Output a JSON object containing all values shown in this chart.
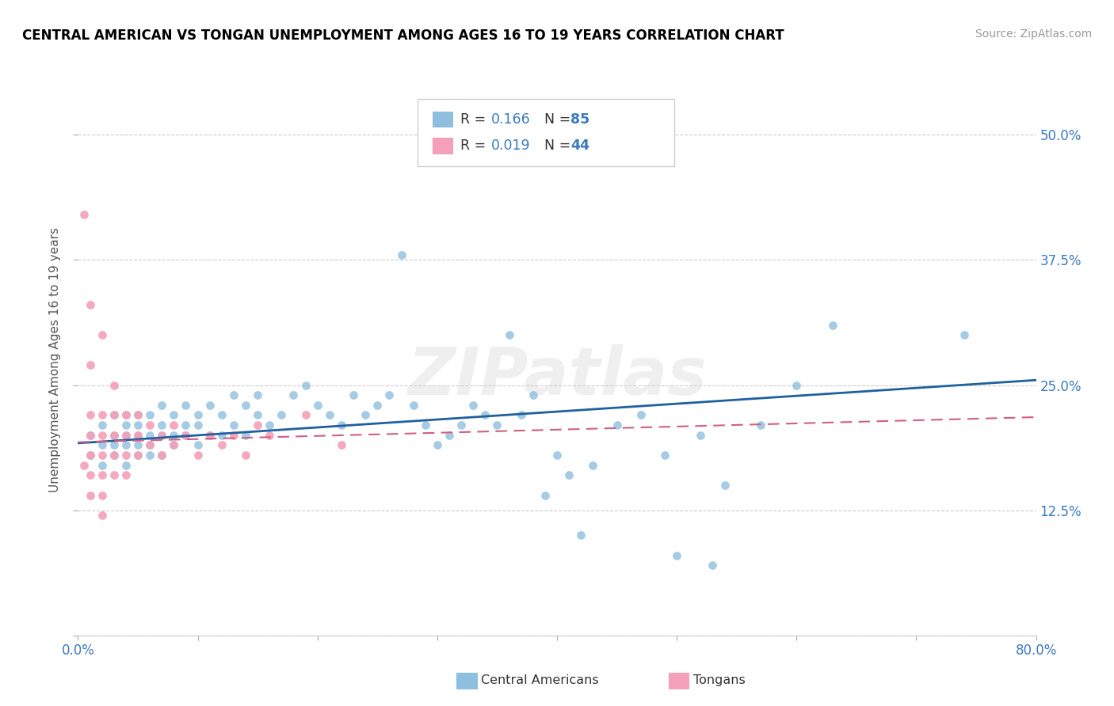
{
  "title": "CENTRAL AMERICAN VS TONGAN UNEMPLOYMENT AMONG AGES 16 TO 19 YEARS CORRELATION CHART",
  "source": "Source: ZipAtlas.com",
  "ylabel": "Unemployment Among Ages 16 to 19 years",
  "xlim": [
    0.0,
    0.8
  ],
  "ylim": [
    0.0,
    0.55
  ],
  "ytick_vals": [
    0.0,
    0.125,
    0.25,
    0.375,
    0.5
  ],
  "ytick_labels": [
    "",
    "12.5%",
    "25.0%",
    "37.5%",
    "50.0%"
  ],
  "ca_color": "#8fbfdf",
  "ca_trend_color": "#2060a0",
  "tg_color": "#f4a0b8",
  "tg_trend_color": "#d06080",
  "watermark_text": "ZIPatlas",
  "ca_R": 0.166,
  "ca_N": 85,
  "tg_R": 0.019,
  "tg_N": 44,
  "ca_x": [
    0.01,
    0.01,
    0.02,
    0.02,
    0.02,
    0.03,
    0.03,
    0.03,
    0.03,
    0.04,
    0.04,
    0.04,
    0.04,
    0.04,
    0.05,
    0.05,
    0.05,
    0.05,
    0.05,
    0.06,
    0.06,
    0.06,
    0.06,
    0.07,
    0.07,
    0.07,
    0.07,
    0.08,
    0.08,
    0.08,
    0.09,
    0.09,
    0.09,
    0.1,
    0.1,
    0.1,
    0.11,
    0.11,
    0.12,
    0.12,
    0.13,
    0.13,
    0.14,
    0.14,
    0.15,
    0.15,
    0.16,
    0.17,
    0.18,
    0.19,
    0.2,
    0.21,
    0.22,
    0.23,
    0.24,
    0.25,
    0.26,
    0.27,
    0.28,
    0.29,
    0.3,
    0.31,
    0.32,
    0.33,
    0.34,
    0.35,
    0.36,
    0.37,
    0.38,
    0.39,
    0.4,
    0.41,
    0.42,
    0.43,
    0.45,
    0.47,
    0.49,
    0.5,
    0.52,
    0.53,
    0.54,
    0.57,
    0.6,
    0.63,
    0.74
  ],
  "ca_y": [
    0.18,
    0.2,
    0.17,
    0.19,
    0.21,
    0.18,
    0.2,
    0.22,
    0.19,
    0.17,
    0.19,
    0.21,
    0.22,
    0.2,
    0.18,
    0.2,
    0.22,
    0.19,
    0.21,
    0.18,
    0.2,
    0.22,
    0.19,
    0.21,
    0.18,
    0.2,
    0.23,
    0.2,
    0.22,
    0.19,
    0.21,
    0.23,
    0.2,
    0.22,
    0.19,
    0.21,
    0.23,
    0.2,
    0.22,
    0.2,
    0.24,
    0.21,
    0.23,
    0.2,
    0.22,
    0.24,
    0.21,
    0.22,
    0.24,
    0.25,
    0.23,
    0.22,
    0.21,
    0.24,
    0.22,
    0.23,
    0.24,
    0.38,
    0.23,
    0.21,
    0.19,
    0.2,
    0.21,
    0.23,
    0.22,
    0.21,
    0.3,
    0.22,
    0.24,
    0.14,
    0.18,
    0.16,
    0.1,
    0.17,
    0.21,
    0.22,
    0.18,
    0.08,
    0.2,
    0.07,
    0.15,
    0.21,
    0.25,
    0.31,
    0.3
  ],
  "tg_x": [
    0.005,
    0.005,
    0.01,
    0.01,
    0.01,
    0.01,
    0.01,
    0.01,
    0.01,
    0.02,
    0.02,
    0.02,
    0.02,
    0.02,
    0.02,
    0.02,
    0.03,
    0.03,
    0.03,
    0.03,
    0.03,
    0.04,
    0.04,
    0.04,
    0.04,
    0.05,
    0.05,
    0.05,
    0.06,
    0.06,
    0.07,
    0.07,
    0.08,
    0.08,
    0.09,
    0.1,
    0.11,
    0.12,
    0.13,
    0.14,
    0.15,
    0.16,
    0.19,
    0.22
  ],
  "tg_y": [
    0.42,
    0.17,
    0.33,
    0.27,
    0.22,
    0.2,
    0.18,
    0.16,
    0.14,
    0.22,
    0.2,
    0.18,
    0.16,
    0.14,
    0.12,
    0.3,
    0.22,
    0.2,
    0.18,
    0.16,
    0.25,
    0.2,
    0.18,
    0.16,
    0.22,
    0.2,
    0.18,
    0.22,
    0.19,
    0.21,
    0.2,
    0.18,
    0.19,
    0.21,
    0.2,
    0.18,
    0.2,
    0.19,
    0.2,
    0.18,
    0.21,
    0.2,
    0.22,
    0.19
  ]
}
